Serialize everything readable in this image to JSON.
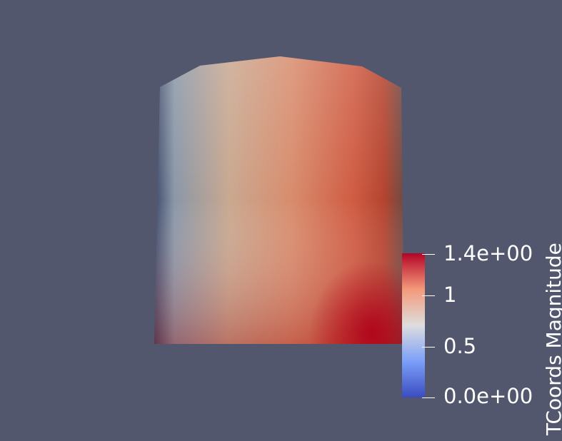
{
  "colorbar": {
    "title": "TCoords Magnitude",
    "ticks": [
      "1.4e+00",
      "1",
      "0.5",
      "0.0e+00"
    ],
    "range": [
      0,
      1.4
    ],
    "colormap": "cool-to-warm",
    "colors": {
      "low": "#3b4cc0",
      "mid": "#dddddd",
      "high": "#b40426"
    }
  },
  "scene": {
    "background": "#52576e",
    "object": "cylinder"
  }
}
